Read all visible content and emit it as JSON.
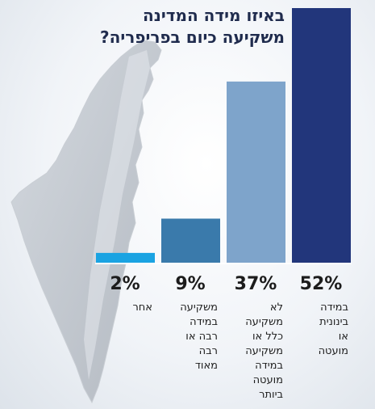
{
  "chart_data": {
    "type": "bar",
    "title": "באיזו מידה המדינה משקיעה כיום בפריפריה?",
    "categories": [
      "אחר",
      "משקיעה במידה רבה או רבה מאוד",
      "לא משקיעה כלל או משקיעה במידה מועטה ביותר",
      "במידה בינונית או מועטה"
    ],
    "category_lines": [
      [
        "אחר"
      ],
      [
        "משקיעה",
        "במידה",
        "רבה או",
        "רבה",
        "מאוד"
      ],
      [
        "לא",
        "משקיעה",
        "כלל או",
        "משקיעה",
        "במידה",
        "מועטה",
        "ביותר"
      ],
      [
        "במידה",
        "בינונית",
        "או",
        "מועטה"
      ]
    ],
    "values": [
      2,
      9,
      37,
      52
    ],
    "labels": [
      "2%",
      "9%",
      "37%",
      "52%"
    ],
    "colors": [
      "#1aa3e2",
      "#3a7aab",
      "#7ea4cb",
      "#22367b"
    ],
    "ylim": [
      0,
      52
    ],
    "xlabel": "",
    "ylabel": "",
    "grid": false,
    "legend": "none"
  }
}
